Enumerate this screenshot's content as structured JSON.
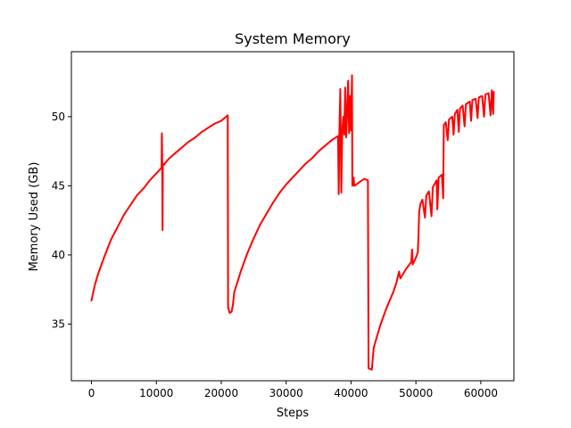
{
  "chart_data": {
    "type": "line",
    "title": "System Memory",
    "xlabel": "Steps",
    "ylabel": "Memory Used (GB)",
    "xlim": [
      -3100,
      65100
    ],
    "ylim": [
      30.9,
      54.7
    ],
    "x_ticks": [
      0,
      10000,
      20000,
      30000,
      40000,
      50000,
      60000
    ],
    "x_tick_labels": [
      "0",
      "10000",
      "20000",
      "30000",
      "40000",
      "50000",
      "60000"
    ],
    "y_ticks": [
      35,
      40,
      45,
      50
    ],
    "y_tick_labels": [
      "35",
      "40",
      "45",
      "50"
    ],
    "grid": false,
    "legend": "none",
    "series": [
      {
        "color": "#ff0000",
        "points": [
          [
            0,
            36.7
          ],
          [
            500,
            37.8
          ],
          [
            1000,
            38.6
          ],
          [
            2000,
            39.9
          ],
          [
            3000,
            41.1
          ],
          [
            4000,
            42.0
          ],
          [
            5000,
            42.9
          ],
          [
            6000,
            43.6
          ],
          [
            7000,
            44.3
          ],
          [
            8000,
            44.8
          ],
          [
            9000,
            45.4
          ],
          [
            10000,
            45.9
          ],
          [
            10800,
            46.3
          ],
          [
            10850,
            48.8
          ],
          [
            10900,
            46.5
          ],
          [
            10950,
            41.8
          ],
          [
            11000,
            46.6
          ],
          [
            11100,
            46.5
          ],
          [
            12000,
            47.0
          ],
          [
            13000,
            47.4
          ],
          [
            14000,
            47.8
          ],
          [
            15000,
            48.2
          ],
          [
            16000,
            48.5
          ],
          [
            17000,
            48.9
          ],
          [
            18000,
            49.2
          ],
          [
            19000,
            49.5
          ],
          [
            20000,
            49.7
          ],
          [
            21000,
            50.1
          ],
          [
            21050,
            36.2
          ],
          [
            21300,
            35.8
          ],
          [
            21600,
            35.9
          ],
          [
            21800,
            36.4
          ],
          [
            22000,
            37.3
          ],
          [
            23000,
            38.8
          ],
          [
            24000,
            40.1
          ],
          [
            25000,
            41.2
          ],
          [
            26000,
            42.2
          ],
          [
            27000,
            43.0
          ],
          [
            28000,
            43.8
          ],
          [
            29000,
            44.5
          ],
          [
            30000,
            45.1
          ],
          [
            31000,
            45.6
          ],
          [
            32000,
            46.1
          ],
          [
            33000,
            46.6
          ],
          [
            34000,
            47.0
          ],
          [
            35000,
            47.5
          ],
          [
            36000,
            47.9
          ],
          [
            37000,
            48.3
          ],
          [
            38000,
            48.6
          ],
          [
            38100,
            44.4
          ],
          [
            38200,
            48.8
          ],
          [
            38350,
            52.0
          ],
          [
            38500,
            44.5
          ],
          [
            38650,
            48.9
          ],
          [
            38800,
            50.0
          ],
          [
            38950,
            48.7
          ],
          [
            39100,
            52.1
          ],
          [
            39250,
            48.5
          ],
          [
            39400,
            50.3
          ],
          [
            39550,
            52.6
          ],
          [
            39700,
            48.8
          ],
          [
            39850,
            51.5
          ],
          [
            40000,
            49.0
          ],
          [
            40150,
            53.0
          ],
          [
            40200,
            45.0
          ],
          [
            40400,
            45.6
          ],
          [
            40500,
            45.0
          ],
          [
            42000,
            45.5
          ],
          [
            42600,
            45.4
          ],
          [
            42700,
            31.8
          ],
          [
            43200,
            31.7
          ],
          [
            43500,
            33.3
          ],
          [
            44500,
            34.9
          ],
          [
            45500,
            36.2
          ],
          [
            46500,
            37.3
          ],
          [
            47000,
            38.0
          ],
          [
            47400,
            38.8
          ],
          [
            47600,
            38.3
          ],
          [
            48500,
            39.0
          ],
          [
            49300,
            39.5
          ],
          [
            49400,
            40.4
          ],
          [
            49500,
            39.3
          ],
          [
            50000,
            39.8
          ],
          [
            50300,
            40.2
          ],
          [
            50400,
            41.5
          ],
          [
            50500,
            43.1
          ],
          [
            50700,
            43.7
          ],
          [
            51000,
            44.0
          ],
          [
            51400,
            42.7
          ],
          [
            51600,
            44.3
          ],
          [
            52000,
            44.6
          ],
          [
            52400,
            42.8
          ],
          [
            52600,
            44.9
          ],
          [
            53200,
            45.4
          ],
          [
            53300,
            43.3
          ],
          [
            53500,
            45.6
          ],
          [
            54000,
            45.8
          ],
          [
            54200,
            44.1
          ],
          [
            54300,
            49.4
          ],
          [
            54600,
            49.6
          ],
          [
            54900,
            48.3
          ],
          [
            55100,
            49.8
          ],
          [
            55600,
            50.0
          ],
          [
            55800,
            48.7
          ],
          [
            56000,
            50.2
          ],
          [
            56400,
            50.5
          ],
          [
            56600,
            48.9
          ],
          [
            56800,
            50.6
          ],
          [
            57200,
            50.8
          ],
          [
            57500,
            49.3
          ],
          [
            57700,
            50.9
          ],
          [
            58300,
            51.1
          ],
          [
            58500,
            49.7
          ],
          [
            58700,
            51.2
          ],
          [
            59200,
            51.3
          ],
          [
            59500,
            49.9
          ],
          [
            59700,
            51.4
          ],
          [
            60200,
            51.5
          ],
          [
            60500,
            50.0
          ],
          [
            60700,
            51.6
          ],
          [
            61200,
            51.7
          ],
          [
            61500,
            50.1
          ],
          [
            61700,
            51.9
          ],
          [
            61900,
            50.2
          ],
          [
            62000,
            51.8
          ]
        ]
      }
    ]
  }
}
